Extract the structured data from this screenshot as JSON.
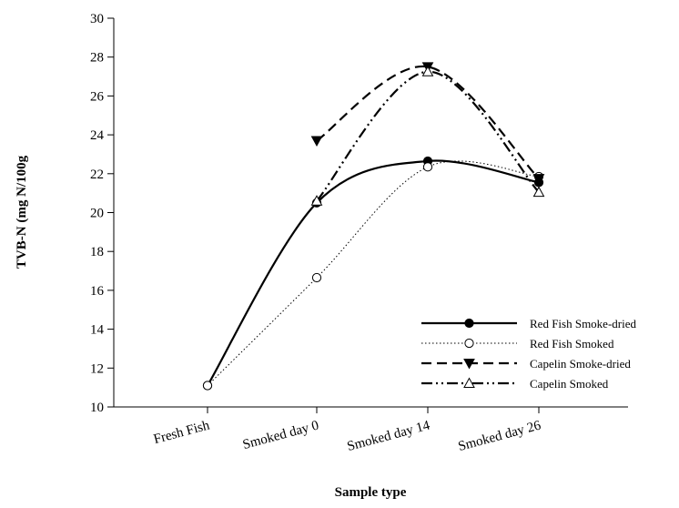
{
  "chart_data": {
    "type": "line",
    "title": "",
    "xlabel": "Sample type",
    "ylabel": "TVB-N (mg N/100g",
    "categories": [
      "Fresh Fish",
      "Smoked day 0",
      "Smoked day 14",
      "Smoked day 26"
    ],
    "ylim": [
      10,
      30
    ],
    "yticks": [
      10,
      12,
      14,
      16,
      18,
      20,
      22,
      24,
      26,
      28,
      30
    ],
    "legend_position": "bottom-right",
    "grid": false,
    "series": [
      {
        "name": "Red Fish Smoke-dried",
        "values": [
          11.1,
          20.5,
          22.65,
          21.55
        ],
        "marker": "filled-circle",
        "line": "solid"
      },
      {
        "name": "Red Fish Smoked",
        "values": [
          11.1,
          16.65,
          22.35,
          21.85
        ],
        "marker": "open-circle",
        "line": "dotted"
      },
      {
        "name": "Capelin Smoke-dried",
        "values": [
          null,
          23.7,
          27.5,
          21.75
        ],
        "marker": "filled-triangle-down",
        "line": "dashed"
      },
      {
        "name": "Capelin Smoked",
        "values": [
          null,
          20.6,
          27.25,
          21.05
        ],
        "marker": "open-triangle-up",
        "line": "dash-dot-dot"
      }
    ]
  }
}
